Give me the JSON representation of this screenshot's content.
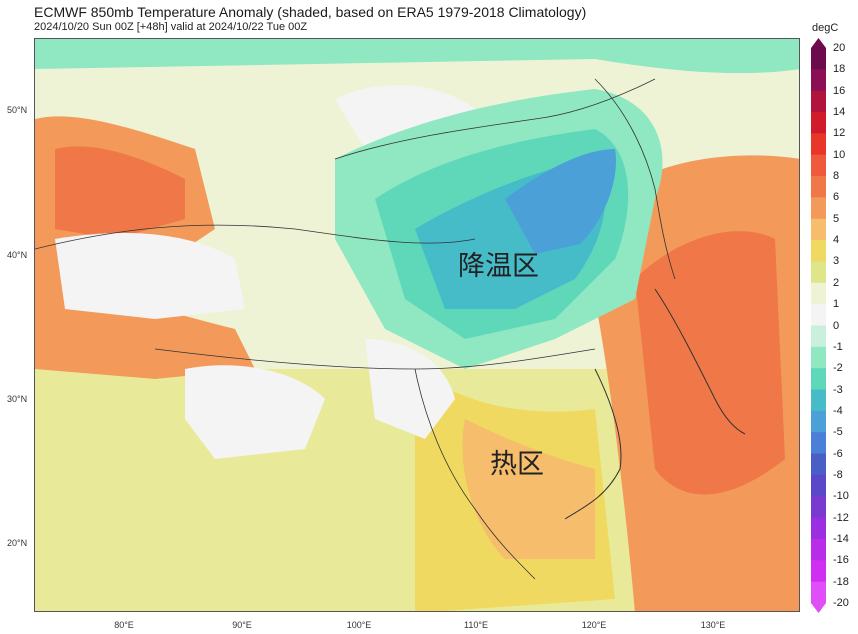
{
  "title": "ECMWF 850mb Temperature Anomaly (shaded, based on ERA5 1979-2018 Climatology)",
  "subtitle": "2024/10/20 Sun 00Z [+48h] valid at 2024/10/22 Tue 00Z",
  "map": {
    "lat_labels": [
      "50°N",
      "40°N",
      "30°N",
      "20°N"
    ],
    "lon_labels": [
      "80°E",
      "90°E",
      "100°E",
      "110°E",
      "120°E",
      "130°E"
    ],
    "regions": {
      "cooling": "降温区",
      "warm": "热区"
    }
  },
  "colorbar": {
    "unit": "degC",
    "ticks": [
      "20",
      "18",
      "16",
      "14",
      "12",
      "10",
      "8",
      "6",
      "5",
      "4",
      "3",
      "2",
      "1",
      "0",
      "-1",
      "-2",
      "-3",
      "-4",
      "-5",
      "-6",
      "-8",
      "-10",
      "-12",
      "-14",
      "-16",
      "-18",
      "-20"
    ],
    "colors": [
      "#6d0a4e",
      "#8a0f55",
      "#b0143c",
      "#d01c2a",
      "#e8372a",
      "#ef5a3c",
      "#f07848",
      "#f39a5a",
      "#f5bd6c",
      "#f0d960",
      "#dfe68a",
      "#eef3d6",
      "#f4f4f4",
      "#c9f0dc",
      "#8fe8c2",
      "#5fd8ba",
      "#45bcc8",
      "#4ba0d8",
      "#4b7fd8",
      "#4a5ec8",
      "#5a48c8",
      "#7a3ad0",
      "#9a2ee0",
      "#b82ee8",
      "#d02ef0",
      "#e04ef8"
    ]
  }
}
